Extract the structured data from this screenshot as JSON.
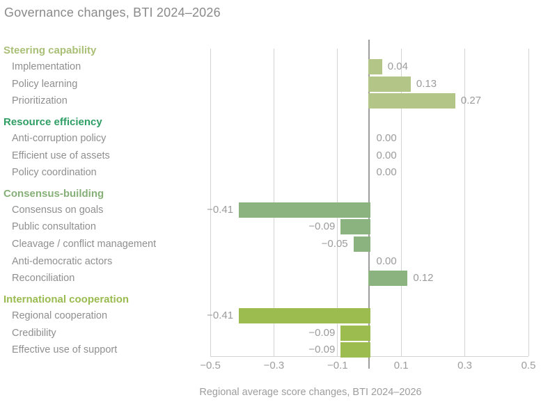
{
  "title": "Governance changes, BTI 2024–2026",
  "chart_data": {
    "type": "bar",
    "orientation": "horizontal",
    "title": "Governance changes, BTI 2024–2026",
    "xlabel": "Regional average score changes, BTI 2024–2026",
    "xlim": [
      -0.5,
      0.5
    ],
    "x_ticks": [
      "−0.5",
      "−0.3",
      "−0.1",
      "0.1",
      "0.3",
      "0.5"
    ],
    "x_tick_values": [
      -0.5,
      -0.3,
      -0.1,
      0.1,
      0.3,
      0.5
    ],
    "grid": true,
    "colors": {
      "gridline": "#d3d3d3",
      "zero_line": "#9d9d9d",
      "text_gray": "#8f8f8f",
      "value_gray": "#9b9b9b"
    },
    "groups": [
      {
        "label": "Steering capability",
        "heading_color": "#a9bf76",
        "bar_color": "#b4c687",
        "items": [
          {
            "label": "Implementation",
            "value": 0.04,
            "display": "0.04"
          },
          {
            "label": "Policy learning",
            "value": 0.13,
            "display": "0.13"
          },
          {
            "label": "Prioritization",
            "value": 0.27,
            "display": "0.27"
          }
        ]
      },
      {
        "label": "Resource efficiency",
        "heading_color": "#2f9e64",
        "bar_color": "#2f9e64",
        "items": [
          {
            "label": "Anti-corruption policy",
            "value": 0,
            "display": "0.00"
          },
          {
            "label": "Efficient use of assets",
            "value": 0,
            "display": "0.00"
          },
          {
            "label": "Policy coordination",
            "value": 0,
            "display": "0.00"
          }
        ]
      },
      {
        "label": "Consensus-building",
        "heading_color": "#86b077",
        "bar_color": "#8bb37f",
        "items": [
          {
            "label": "Consensus on goals",
            "value": -0.41,
            "display": "−0.41"
          },
          {
            "label": "Public consultation",
            "value": -0.09,
            "display": "−0.09"
          },
          {
            "label": "Cleavage / conflict management",
            "value": -0.05,
            "display": "−0.05"
          },
          {
            "label": "Anti-democratic actors",
            "value": 0,
            "display": "0.00"
          },
          {
            "label": "Reconciliation",
            "value": 0.12,
            "display": "0.12"
          }
        ]
      },
      {
        "label": "International cooperation",
        "heading_color": "#9abb50",
        "bar_color": "#9dbc4f",
        "items": [
          {
            "label": "Regional cooperation",
            "value": -0.41,
            "display": "−0.41"
          },
          {
            "label": "Credibility",
            "value": -0.09,
            "display": "−0.09"
          },
          {
            "label": "Effective use of support",
            "value": -0.09,
            "display": "−0.09"
          }
        ]
      }
    ]
  }
}
